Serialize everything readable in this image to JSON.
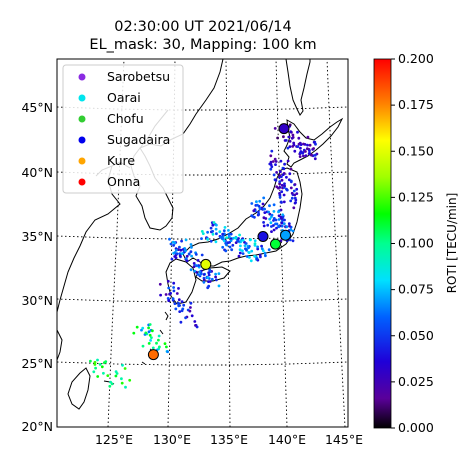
{
  "title": {
    "line1": "02:30:00 UT 2021/06/14",
    "line2": "EL_mask: 30, Mapping: 100 km"
  },
  "map": {
    "lon_ticks": [
      "125°E",
      "130°E",
      "135°E",
      "140°E",
      "145°E"
    ],
    "lat_ticks": [
      "20°N",
      "25°N",
      "30°N",
      "35°N",
      "40°N",
      "45°N"
    ],
    "lon_range": [
      120,
      146
    ],
    "lat_range": [
      20,
      49
    ],
    "grid": true
  },
  "legend": {
    "placement": "upper-left",
    "items": [
      {
        "label": "Sarobetsu",
        "color": "#8a2be2"
      },
      {
        "label": "Oarai",
        "color": "#00e5ee"
      },
      {
        "label": "Chofu",
        "color": "#32cd32"
      },
      {
        "label": "Sugadaira",
        "color": "#0000ee"
      },
      {
        "label": "Kure",
        "color": "#ffa500"
      },
      {
        "label": "Onna",
        "color": "#ff0000"
      }
    ]
  },
  "stations": [
    {
      "name": "Sarobetsu",
      "lon": 140.1,
      "lat": 43.5,
      "roti": 0.03
    },
    {
      "name": "Oarai",
      "lon": 140.0,
      "lat": 35.1,
      "roti": 0.07
    },
    {
      "name": "Chofu",
      "lon": 139.1,
      "lat": 34.4,
      "roti": 0.11
    },
    {
      "name": "Sugadaira",
      "lon": 138.0,
      "lat": 35.0,
      "roti": 0.04
    },
    {
      "name": "Kure",
      "lon": 132.9,
      "lat": 32.8,
      "roti": 0.15
    },
    {
      "name": "Onna",
      "lon": 128.3,
      "lat": 25.7,
      "roti": 0.18
    }
  ],
  "colorbar": {
    "label": "ROTI [TECU/min]",
    "min": 0.0,
    "max": 0.2,
    "ticks": [
      "0.000",
      "0.025",
      "0.050",
      "0.075",
      "0.100",
      "0.125",
      "0.150",
      "0.175",
      "0.200"
    ]
  }
}
